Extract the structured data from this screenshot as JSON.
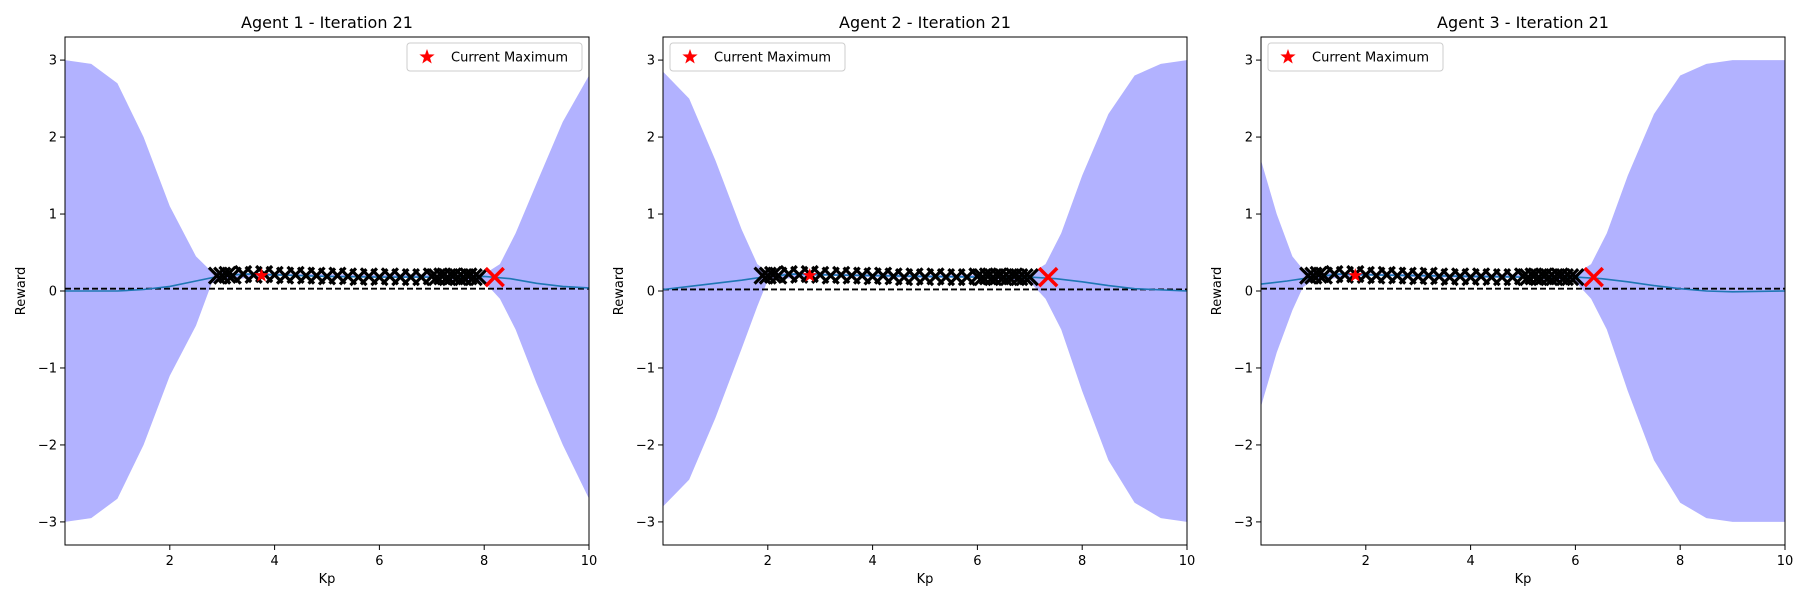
{
  "colors": {
    "band": "#b2b2ff",
    "mean": "#1f77b4",
    "observation": "#000000",
    "maximum": "#ff0000",
    "next": "#ff0000",
    "baseline": "#000000"
  },
  "chart_data": [
    {
      "type": "line",
      "title": "Agent 1 - Iteration 21",
      "xlabel": "Kp",
      "ylabel": "Reward",
      "xlim": [
        0,
        10
      ],
      "ylim": [
        -3.3,
        3.3
      ],
      "xticks": [
        2,
        4,
        6,
        8,
        10
      ],
      "yticks": [
        -3,
        -2,
        -1,
        0,
        1,
        2,
        3
      ],
      "legend": {
        "label": "Current Maximum",
        "placement": "top-right"
      },
      "baseline_y": 0.03,
      "band": {
        "x": [
          0,
          0.5,
          1,
          1.5,
          2,
          2.5,
          2.8,
          3,
          4,
          5,
          6,
          7,
          8,
          8.3,
          8.6,
          9,
          9.5,
          10
        ],
        "upper": [
          3.0,
          2.95,
          2.7,
          2.0,
          1.1,
          0.45,
          0.25,
          0.24,
          0.23,
          0.22,
          0.21,
          0.21,
          0.22,
          0.35,
          0.75,
          1.4,
          2.2,
          2.8
        ],
        "lower": [
          -3.0,
          -2.95,
          -2.7,
          -2.0,
          -1.1,
          -0.45,
          0.1,
          0.14,
          0.2,
          0.18,
          0.17,
          0.17,
          0.12,
          -0.1,
          -0.5,
          -1.2,
          -2.0,
          -2.7
        ]
      },
      "mean": {
        "x": [
          0,
          1,
          1.5,
          2,
          2.5,
          3,
          3.5,
          4,
          5,
          6,
          7,
          8,
          8.5,
          9,
          9.5,
          10
        ],
        "y": [
          0.0,
          0.0,
          0.02,
          0.06,
          0.13,
          0.2,
          0.22,
          0.21,
          0.19,
          0.18,
          0.18,
          0.19,
          0.16,
          0.1,
          0.06,
          0.04
        ]
      },
      "observations_x": [
        2.9,
        3.0,
        3.1,
        3.2,
        3.4,
        3.6,
        3.8,
        4.0,
        4.2,
        4.4,
        4.6,
        4.8,
        5.0,
        5.2,
        5.4,
        5.6,
        5.8,
        6.0,
        6.2,
        6.4,
        6.6,
        6.8,
        7.0,
        7.1,
        7.2,
        7.3,
        7.4,
        7.5,
        7.6,
        7.7,
        7.8,
        7.9
      ],
      "observations_y": [
        0.2,
        0.2,
        0.21,
        0.2,
        0.22,
        0.21,
        0.22,
        0.21,
        0.2,
        0.21,
        0.2,
        0.2,
        0.19,
        0.2,
        0.19,
        0.18,
        0.19,
        0.18,
        0.19,
        0.18,
        0.18,
        0.18,
        0.19,
        0.18,
        0.19,
        0.18,
        0.19,
        0.18,
        0.18,
        0.19,
        0.18,
        0.18
      ],
      "current_maximum": {
        "x": 3.75,
        "y": 0.2
      },
      "next_point": {
        "x": 8.2,
        "y": 0.18
      }
    },
    {
      "type": "line",
      "title": "Agent 2 - Iteration 21",
      "xlabel": "Kp",
      "ylabel": "Reward",
      "xlim": [
        0,
        10
      ],
      "ylim": [
        -3.3,
        3.3
      ],
      "xticks": [
        2,
        4,
        6,
        8,
        10
      ],
      "yticks": [
        -3,
        -2,
        -1,
        0,
        1,
        2,
        3
      ],
      "legend": {
        "label": "Current Maximum",
        "placement": "top-left"
      },
      "baseline_y": 0.02,
      "band": {
        "x": [
          0,
          0.5,
          1,
          1.5,
          1.8,
          2,
          3,
          4,
          5,
          6,
          7,
          7.3,
          7.6,
          8,
          8.5,
          9,
          9.5,
          10
        ],
        "upper": [
          2.85,
          2.5,
          1.7,
          0.8,
          0.35,
          0.24,
          0.23,
          0.22,
          0.21,
          0.21,
          0.22,
          0.35,
          0.75,
          1.5,
          2.3,
          2.8,
          2.95,
          3.0
        ],
        "lower": [
          -2.8,
          -2.45,
          -1.65,
          -0.75,
          -0.2,
          0.14,
          0.2,
          0.18,
          0.17,
          0.17,
          0.12,
          -0.1,
          -0.5,
          -1.3,
          -2.2,
          -2.75,
          -2.95,
          -3.0
        ]
      },
      "mean": {
        "x": [
          0,
          0.5,
          1,
          1.5,
          2,
          2.5,
          3,
          4,
          5,
          6,
          7,
          7.5,
          8,
          8.5,
          9,
          10
        ],
        "y": [
          0.02,
          0.06,
          0.1,
          0.14,
          0.19,
          0.22,
          0.21,
          0.2,
          0.19,
          0.18,
          0.18,
          0.16,
          0.12,
          0.07,
          0.03,
          0.0
        ]
      },
      "observations_x": [
        1.9,
        2.0,
        2.1,
        2.2,
        2.4,
        2.6,
        2.8,
        3.0,
        3.2,
        3.4,
        3.6,
        3.8,
        4.0,
        4.2,
        4.4,
        4.6,
        4.8,
        5.0,
        5.2,
        5.4,
        5.6,
        5.8,
        6.0,
        6.1,
        6.2,
        6.3,
        6.4,
        6.5,
        6.6,
        6.7,
        6.8,
        6.9,
        7.0
      ],
      "observations_y": [
        0.2,
        0.2,
        0.21,
        0.2,
        0.22,
        0.21,
        0.22,
        0.21,
        0.2,
        0.21,
        0.2,
        0.2,
        0.19,
        0.2,
        0.19,
        0.18,
        0.19,
        0.18,
        0.19,
        0.18,
        0.18,
        0.18,
        0.19,
        0.18,
        0.19,
        0.18,
        0.19,
        0.18,
        0.18,
        0.19,
        0.18,
        0.18,
        0.18
      ],
      "current_maximum": {
        "x": 2.8,
        "y": 0.2
      },
      "next_point": {
        "x": 7.35,
        "y": 0.18
      }
    },
    {
      "type": "line",
      "title": "Agent 3 - Iteration 21",
      "xlabel": "Kp",
      "ylabel": "Reward",
      "xlim": [
        0,
        10
      ],
      "ylim": [
        -3.3,
        3.3
      ],
      "xticks": [
        2,
        4,
        6,
        8,
        10
      ],
      "yticks": [
        -3,
        -2,
        -1,
        0,
        1,
        2,
        3
      ],
      "legend": {
        "label": "Current Maximum",
        "placement": "top-left"
      },
      "baseline_y": 0.03,
      "band": {
        "x": [
          0,
          0.3,
          0.6,
          0.8,
          1,
          2,
          3,
          4,
          5,
          6,
          6.3,
          6.6,
          7,
          7.5,
          8,
          8.5,
          9,
          10
        ],
        "upper": [
          1.7,
          1.0,
          0.45,
          0.28,
          0.24,
          0.23,
          0.22,
          0.21,
          0.21,
          0.22,
          0.35,
          0.75,
          1.5,
          2.3,
          2.8,
          2.95,
          3.0,
          3.0
        ],
        "lower": [
          -1.5,
          -0.8,
          -0.25,
          0.05,
          0.14,
          0.2,
          0.18,
          0.17,
          0.17,
          0.12,
          -0.1,
          -0.5,
          -1.3,
          -2.2,
          -2.75,
          -2.95,
          -3.0,
          -3.0
        ]
      },
      "mean": {
        "x": [
          0,
          0.5,
          1,
          1.5,
          2,
          3,
          4,
          5,
          6,
          6.5,
          7,
          7.5,
          8,
          8.5,
          9,
          10
        ],
        "y": [
          0.09,
          0.13,
          0.18,
          0.22,
          0.21,
          0.2,
          0.19,
          0.18,
          0.18,
          0.16,
          0.12,
          0.07,
          0.03,
          0.0,
          -0.01,
          0.0
        ]
      },
      "observations_x": [
        0.9,
        1.0,
        1.1,
        1.2,
        1.4,
        1.6,
        1.8,
        2.0,
        2.2,
        2.4,
        2.6,
        2.8,
        3.0,
        3.2,
        3.4,
        3.6,
        3.8,
        4.0,
        4.2,
        4.4,
        4.6,
        4.8,
        5.0,
        5.1,
        5.2,
        5.3,
        5.4,
        5.5,
        5.6,
        5.7,
        5.8,
        5.9,
        6.0
      ],
      "observations_y": [
        0.2,
        0.2,
        0.21,
        0.2,
        0.22,
        0.21,
        0.22,
        0.21,
        0.2,
        0.21,
        0.2,
        0.2,
        0.19,
        0.2,
        0.19,
        0.18,
        0.19,
        0.18,
        0.19,
        0.18,
        0.18,
        0.18,
        0.19,
        0.18,
        0.19,
        0.18,
        0.19,
        0.18,
        0.18,
        0.19,
        0.18,
        0.18,
        0.18
      ],
      "current_maximum": {
        "x": 1.8,
        "y": 0.2
      },
      "next_point": {
        "x": 6.35,
        "y": 0.18
      }
    }
  ]
}
